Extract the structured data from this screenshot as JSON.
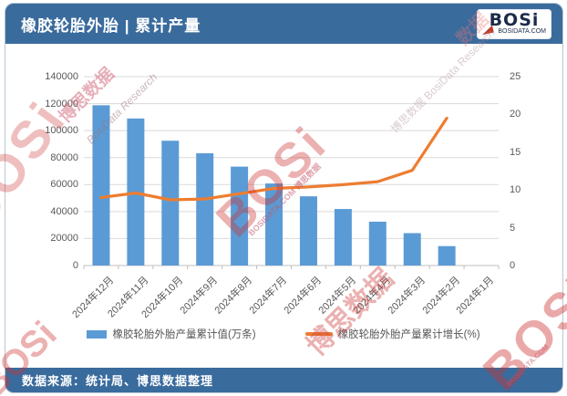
{
  "header": {
    "title": "橡胶轮胎外胎 | 累计产量",
    "logo": {
      "text": "BOSi",
      "subtext": "BOSIDATA.COM"
    }
  },
  "footer": {
    "source": "数据来源：统计局、博思数据整理"
  },
  "colors": {
    "header_bg": "#3a6b9d",
    "bar": "#5b9bd5",
    "line": "#ed7d31",
    "grid": "#d9d9d9",
    "axis": "#bfbfbf",
    "label": "#595959",
    "watermark_red": "#cd3232",
    "watermark_pink": "#d05f73"
  },
  "chart_data": {
    "type": "bar",
    "subtype": "bar+line-combo",
    "categories": [
      "2024年12月",
      "2024年11月",
      "2024年10月",
      "2024年9月",
      "2024年8月",
      "2024年7月",
      "2024年6月",
      "2024年5月",
      "2024年4月",
      "2024年3月",
      "2024年2月",
      "2024年1月"
    ],
    "series": [
      {
        "name": "橡胶轮胎外胎产量累计值(万条)",
        "type": "bar",
        "axis": "left",
        "values": [
          118800,
          109000,
          92500,
          83200,
          73300,
          60800,
          51300,
          41900,
          32500,
          24000,
          14400,
          null
        ]
      },
      {
        "name": "橡胶轮胎外胎产量累计增长(%)",
        "type": "line",
        "axis": "right",
        "values": [
          9.0,
          9.6,
          8.7,
          8.8,
          9.5,
          10.2,
          10.4,
          10.7,
          11.1,
          12.6,
          19.5,
          null
        ]
      }
    ],
    "title": "橡胶轮胎外胎 | 累计产量",
    "xlabel": "",
    "ylabel_left": "",
    "ylabel_right": "",
    "left_axis": {
      "min": 0,
      "max": 140000,
      "step": 20000
    },
    "right_axis": {
      "min": 0,
      "max": 25,
      "step": 5
    },
    "grid": true,
    "legend_position": "bottom"
  },
  "watermarks": [
    {
      "text": "BOSi",
      "cls": "wm-left-bosi"
    },
    {
      "text": "博思数据",
      "cls": "wm-tl-cn"
    },
    {
      "text": "BosiData Research",
      "cls": "wm-tl-en"
    },
    {
      "text": "BOSi",
      "cls": "wm-center-bosi"
    },
    {
      "text": "BOSIDATA.COM 博思数据",
      "cls": "wm-center-sub"
    },
    {
      "text": "博思数据 BosiData Research",
      "cls": "wm-tr"
    },
    {
      "text": "数据",
      "cls": "wm-header-right"
    },
    {
      "text": "博思数据",
      "cls": "wm-bottom-cn"
    },
    {
      "text": "BOSi",
      "cls": "wm-br-bosi"
    },
    {
      "text": "BOSIDATA.COM",
      "cls": "wm-br-sub"
    },
    {
      "text": "BOSi",
      "cls": "wm-bl-bosi"
    }
  ]
}
